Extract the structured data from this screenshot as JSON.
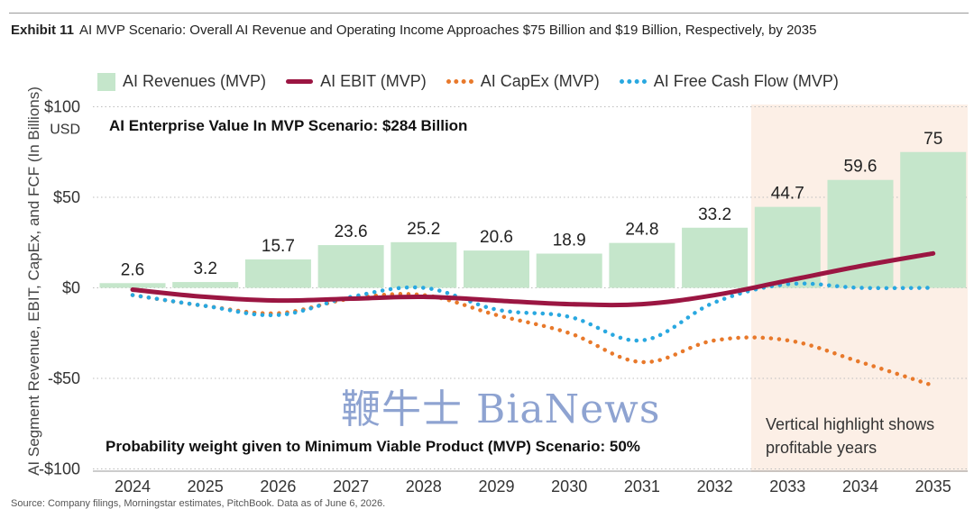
{
  "header": {
    "exhibit_label": "Exhibit 11",
    "title": "AI MVP Scenario: Overall AI Revenue and Operating Income Approaches $75 Billion and $19 Billion, Respectively, by 2035"
  },
  "legend": {
    "revenues": "AI Revenues (MVP)",
    "ebit": "AI EBIT (MVP)",
    "capex": "AI CapEx (MVP)",
    "fcf": "AI Free Cash Flow (MVP)"
  },
  "annotations": {
    "enterprise_value": "AI Enterprise Value In MVP Scenario: $284 Billion",
    "probability": "Probability weight given to Minimum Viable Product (MVP) Scenario: 50%",
    "highlight_line1": "Vertical highlight shows",
    "highlight_line2": "profitable years"
  },
  "watermark": "鞭牛士 BiaNews",
  "source": "Source: Company filings, Morningstar estimates, PitchBook. Data as of June 6, 2026.",
  "colors": {
    "revenue_bar": "#c5e6cb",
    "ebit": "#9b1642",
    "capex": "#e8792b",
    "fcf": "#29a8e0",
    "highlight": "#fcefe6",
    "grid": "#bdbdbd"
  },
  "chart_data": {
    "type": "bar",
    "title": "AI MVP Scenario: Overall AI Revenue and Operating Income Approaches $75 Billion and $19 Billion, Respectively, by 2035",
    "ylabel": "AI Segment Revenue, EBIT, CapEx, and FCF (In Billions)",
    "ylim": [
      -100,
      100
    ],
    "ytick_values": [
      100,
      50,
      0,
      -50,
      -100
    ],
    "ytick_labels": [
      "$100",
      "$50",
      "$0",
      "-$50",
      "-$100"
    ],
    "y_unit_label": "USD",
    "grid": true,
    "legend_position": "top",
    "categories": [
      "2024",
      "2025",
      "2026",
      "2027",
      "2028",
      "2029",
      "2030",
      "2031",
      "2032",
      "2033",
      "2034",
      "2035"
    ],
    "highlighted_categories": [
      "2033",
      "2034",
      "2035"
    ],
    "series": [
      {
        "name": "AI Revenues (MVP)",
        "type": "bar",
        "values": [
          2.6,
          3.2,
          15.7,
          23.6,
          25.2,
          20.6,
          18.9,
          24.8,
          33.2,
          44.7,
          59.6,
          75
        ],
        "labels": [
          "2.6",
          "3.2",
          "15.7",
          "23.6",
          "25.2",
          "20.6",
          "18.9",
          "24.8",
          "33.2",
          "44.7",
          "59.6",
          "75"
        ]
      },
      {
        "name": "AI EBIT (MVP)",
        "type": "line",
        "values": [
          -1,
          -5,
          -7,
          -6,
          -5,
          -7,
          -9,
          -9,
          -4,
          4,
          12,
          19
        ]
      },
      {
        "name": "AI CapEx (MVP)",
        "type": "line",
        "style": "dotted",
        "values": [
          -4,
          -10,
          -14,
          -6,
          -4,
          -15,
          -25,
          -41,
          -29,
          -29,
          -41,
          -54
        ]
      },
      {
        "name": "AI Free Cash Flow (MVP)",
        "type": "line",
        "style": "dotted",
        "values": [
          -4,
          -10,
          -15,
          -5,
          0,
          -12,
          -16,
          -29,
          -8,
          2,
          0,
          0
        ]
      }
    ]
  }
}
